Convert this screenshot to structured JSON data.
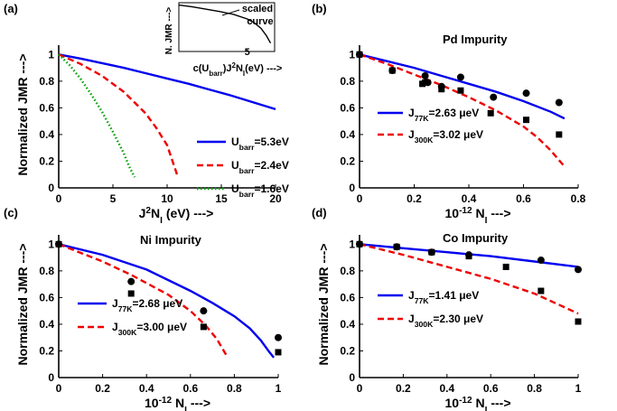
{
  "chart_data": [
    {
      "panel": "(a)",
      "type": "line",
      "xlabel": "J²N_I (eV) --->",
      "ylabel": "Normalized JMR --->",
      "xlim": [
        0,
        20
      ],
      "ylim": [
        0,
        1.07
      ],
      "xticks": [
        0,
        5,
        10,
        15,
        20
      ],
      "yticks": [
        0,
        0.2,
        0.4,
        0.6,
        0.8,
        1
      ],
      "legend_position": "bottom-right",
      "series": [
        {
          "name": "U_barr=5.3eV",
          "color": "#0000ee",
          "dash": "solid",
          "x": [
            0,
            2,
            4,
            6,
            8,
            10,
            12,
            14,
            16,
            18,
            20
          ],
          "y": [
            1.0,
            0.97,
            0.935,
            0.9,
            0.86,
            0.82,
            0.78,
            0.735,
            0.69,
            0.64,
            0.59
          ]
        },
        {
          "name": "U_barr=2.4eV",
          "color": "#ee0000",
          "dash": "dashed",
          "x": [
            0,
            2,
            4,
            6,
            8,
            9,
            10,
            10.5,
            11
          ],
          "y": [
            1.0,
            0.93,
            0.84,
            0.72,
            0.56,
            0.45,
            0.32,
            0.2,
            0.08
          ]
        },
        {
          "name": "U_barr=1.6eV",
          "color": "#00a000",
          "dash": "dotted",
          "x": [
            0,
            1,
            2,
            3,
            4,
            5,
            6,
            6.5,
            7
          ],
          "y": [
            1.0,
            0.92,
            0.82,
            0.7,
            0.57,
            0.42,
            0.26,
            0.16,
            0.08
          ]
        }
      ],
      "inset": {
        "xlabel": "c(U_barr)J²N_I(eV) --->",
        "ylabel": "N. JMR --->",
        "xticks": [
          5
        ],
        "annotation": "scaled curve",
        "xlim": [
          0,
          7
        ],
        "ylim": [
          0,
          1.05
        ],
        "curve": {
          "x": [
            0,
            1,
            2,
            3,
            4,
            5,
            5.5,
            6,
            6.4,
            6.7
          ],
          "y": [
            1.0,
            0.96,
            0.91,
            0.86,
            0.8,
            0.7,
            0.62,
            0.5,
            0.34,
            0.18
          ]
        }
      }
    },
    {
      "panel": "(b)",
      "type": "line",
      "title": "Pd Impurity",
      "xlabel": "10⁻¹² N_I --->",
      "ylabel": "",
      "xlim": [
        0,
        0.8
      ],
      "ylim": [
        0,
        1.07
      ],
      "xticks": [
        0,
        0.2,
        0.4,
        0.6,
        0.8
      ],
      "yticks": [
        0,
        0.2,
        0.4,
        0.6,
        0.8,
        1
      ],
      "legend_position": "bottom-left",
      "series": [
        {
          "name": "J_77K=2.63 μeV",
          "color": "#0000ee",
          "dash": "solid",
          "x": [
            0,
            0.1,
            0.2,
            0.3,
            0.4,
            0.5,
            0.6,
            0.7,
            0.75
          ],
          "y": [
            1.0,
            0.95,
            0.9,
            0.84,
            0.78,
            0.72,
            0.65,
            0.57,
            0.52
          ]
        },
        {
          "name": "J_300K=3.02 μeV",
          "color": "#ee0000",
          "dash": "dashed",
          "x": [
            0,
            0.1,
            0.2,
            0.3,
            0.4,
            0.5,
            0.6,
            0.65,
            0.7,
            0.75
          ],
          "y": [
            1.0,
            0.93,
            0.85,
            0.77,
            0.68,
            0.58,
            0.46,
            0.38,
            0.28,
            0.16
          ]
        }
      ],
      "points_circle": {
        "x": [
          0,
          0.12,
          0.24,
          0.25,
          0.3,
          0.37,
          0.49,
          0.61,
          0.73
        ],
        "y": [
          1.0,
          0.88,
          0.84,
          0.79,
          0.76,
          0.83,
          0.68,
          0.71,
          0.64
        ]
      },
      "points_square": {
        "x": [
          0,
          0.12,
          0.23,
          0.24,
          0.3,
          0.37,
          0.48,
          0.61,
          0.73
        ],
        "y": [
          1.0,
          0.88,
          0.78,
          0.79,
          0.74,
          0.73,
          0.56,
          0.51,
          0.4
        ]
      }
    },
    {
      "panel": "(c)",
      "type": "line",
      "title": "Ni Impurity",
      "xlabel": "10⁻¹² N_I --->",
      "ylabel": "Normalized JMR --->",
      "xlim": [
        0,
        1
      ],
      "ylim": [
        0,
        1.07
      ],
      "xticks": [
        0,
        0.2,
        0.4,
        0.6,
        0.8,
        1
      ],
      "yticks": [
        0,
        0.2,
        0.4,
        0.6,
        0.8,
        1
      ],
      "legend_position": "bottom-left",
      "series": [
        {
          "name": "J_77K=2.68 μeV",
          "color": "#0000ee",
          "dash": "solid",
          "x": [
            0,
            0.2,
            0.4,
            0.6,
            0.7,
            0.8,
            0.87,
            0.92,
            0.96,
            0.98
          ],
          "y": [
            1.0,
            0.92,
            0.81,
            0.65,
            0.56,
            0.46,
            0.37,
            0.28,
            0.19,
            0.15
          ]
        },
        {
          "name": "J_300K=3.00 μeV",
          "color": "#ee0000",
          "dash": "dashed",
          "x": [
            0,
            0.2,
            0.33,
            0.5,
            0.6,
            0.67,
            0.72,
            0.77
          ],
          "y": [
            1.0,
            0.87,
            0.77,
            0.62,
            0.5,
            0.39,
            0.29,
            0.15
          ]
        }
      ],
      "points_circle": {
        "x": [
          0,
          0.33,
          0.66,
          1.0
        ],
        "y": [
          1.0,
          0.72,
          0.5,
          0.3
        ]
      },
      "points_square": {
        "x": [
          0,
          0.33,
          0.66,
          1.0
        ],
        "y": [
          1.0,
          0.63,
          0.38,
          0.19
        ]
      }
    },
    {
      "panel": "(d)",
      "type": "line",
      "title": "Co Impurity",
      "xlabel": "10⁻¹² N_I --->",
      "ylabel": "Normalized JMR --->",
      "xlim": [
        0,
        1
      ],
      "ylim": [
        0,
        1.07
      ],
      "xticks": [
        0,
        0.2,
        0.4,
        0.6,
        0.8,
        1
      ],
      "yticks": [
        0,
        0.2,
        0.4,
        0.6,
        0.8,
        1
      ],
      "legend_position": "bottom-left",
      "series": [
        {
          "name": "J_77K=1.41 μeV",
          "color": "#0000ee",
          "dash": "solid",
          "x": [
            0,
            0.2,
            0.4,
            0.6,
            0.8,
            1.0
          ],
          "y": [
            1.0,
            0.97,
            0.94,
            0.91,
            0.87,
            0.83
          ]
        },
        {
          "name": "J_300K=2.30 μeV",
          "color": "#ee0000",
          "dash": "dashed",
          "x": [
            0,
            0.2,
            0.4,
            0.6,
            0.8,
            1.0
          ],
          "y": [
            1.0,
            0.92,
            0.83,
            0.74,
            0.63,
            0.48
          ]
        }
      ],
      "points_circle": {
        "x": [
          0,
          0.17,
          0.33,
          0.5,
          0.83,
          1.0
        ],
        "y": [
          1.0,
          0.98,
          0.94,
          0.92,
          0.88,
          0.81
        ]
      },
      "points_square": {
        "x": [
          0,
          0.17,
          0.33,
          0.5,
          0.67,
          0.83,
          1.0
        ],
        "y": [
          1.0,
          0.98,
          0.94,
          0.91,
          0.83,
          0.65,
          0.42
        ]
      }
    }
  ]
}
